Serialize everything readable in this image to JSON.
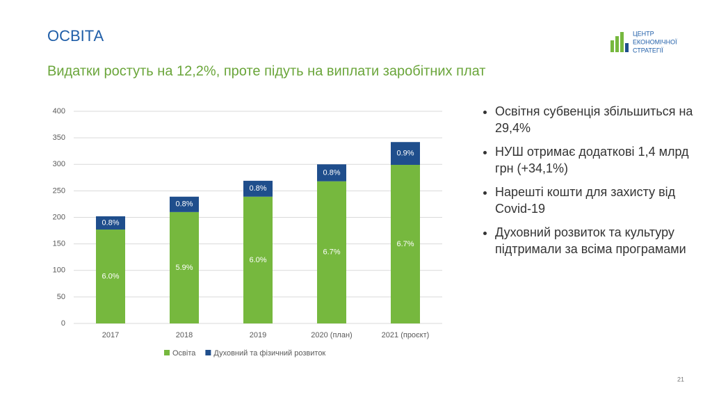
{
  "slide": {
    "title": "ОСВІТА",
    "subtitle": "Видатки ростуть на 12,2%, проте підуть на виплати заробітних плат",
    "logo": [
      "ЦЕНТР",
      "ЕКОНОМІЧНОЇ",
      "СТРАТЕГІЇ"
    ],
    "bullets": [
      "Освітня субвенція збільшиться на 29,4%",
      "НУШ отримає додаткові 1,4 млрд грн (+34,1%)",
      "Нарешті кошти для захисту від Covid-19",
      "Духовний розвиток та культуру підтримали за всіма програмами"
    ],
    "page_number": "21"
  },
  "chart_data": {
    "type": "stacked_bar",
    "categories": [
      "2017",
      "2018",
      "2019",
      "2020 (план)",
      "2021 (проєкт)"
    ],
    "series": [
      {
        "name": "Освіта",
        "color": "#76b83e",
        "values": [
          177,
          210,
          239,
          268,
          299
        ],
        "share_labels": [
          "6.0%",
          "5.9%",
          "6.0%",
          "6.7%",
          "6.7%"
        ]
      },
      {
        "name": "Духовний та фізичний розвиток",
        "color": "#1f4e8c",
        "values": [
          25,
          29,
          30,
          32,
          43
        ],
        "share_labels": [
          "0.8%",
          "0.8%",
          "0.8%",
          "0.8%",
          "0.9%"
        ]
      }
    ],
    "ylim": [
      0,
      400
    ],
    "yticks": [
      0,
      50,
      100,
      150,
      200,
      250,
      300,
      350,
      400
    ],
    "grid": true
  }
}
